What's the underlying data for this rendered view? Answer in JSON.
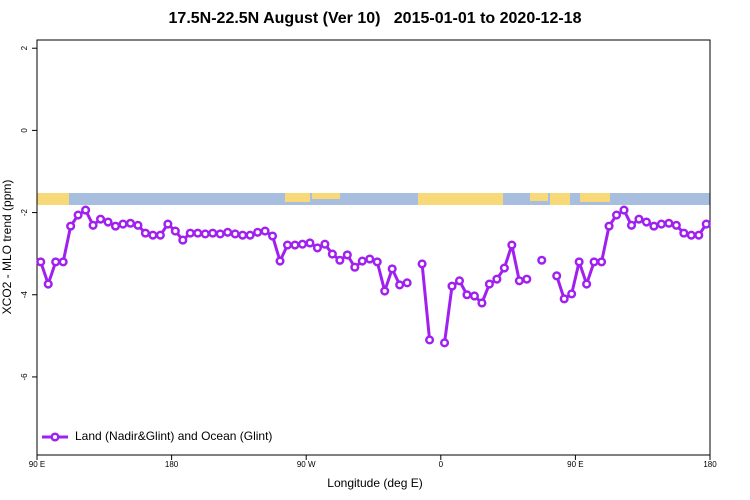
{
  "chart_data": {
    "type": "line",
    "title": "17.5N-22.5N August (Ver 10)   2015-01-01 to 2020-12-18",
    "x_label": "Longitude (deg E)",
    "y_label": "XCO2 - MLO trend (ppm)",
    "xlim": [
      90,
      540
    ],
    "xticks": [
      {
        "value": 90,
        "label": "90 E"
      },
      180,
      {
        "value": 270,
        "label": "90 W"
      },
      {
        "value": 360,
        "label": "0"
      },
      {
        "value": 450,
        "label": "90 E"
      },
      {
        "value": 540,
        "label": "180"
      }
    ],
    "ylim": [
      -7.9,
      2.2
    ],
    "yticks": [
      -6,
      -4,
      -2,
      0,
      2
    ],
    "legend": "bottom-left",
    "x": [
      92.5,
      97.5,
      102.5,
      107.5,
      112.5,
      117.5,
      122.5,
      127.5,
      132.5,
      137.5,
      142.5,
      147.5,
      152.5,
      157.5,
      162.5,
      167.5,
      172.5,
      177.5,
      182.5,
      187.5,
      192.5,
      197.5,
      202.5,
      207.5,
      212.5,
      217.5,
      222.5,
      227.5,
      232.5,
      237.5,
      242.5,
      247.5,
      252.5,
      257.5,
      262.5,
      267.5,
      272.5,
      277.5,
      282.5,
      287.5,
      292.5,
      297.5,
      302.5,
      307.5,
      312.5,
      317.5,
      322.5,
      327.5,
      332.5,
      337.5,
      342.5,
      347.5,
      352.5,
      357.5,
      362.5,
      367.5,
      372.5,
      377.5,
      382.5,
      387.5,
      392.5,
      397.5,
      402.5,
      407.5,
      412.5,
      417.5,
      422.5,
      427.5,
      432.5,
      437.5,
      442.5,
      447.5,
      452.5,
      457.5,
      462.5,
      467.5,
      472.5,
      477.5,
      482.5,
      487.5,
      492.5,
      497.5,
      502.5,
      507.5,
      512.5,
      517.5,
      522.5,
      527.5,
      532.5,
      537.5
    ],
    "series": [
      {
        "name": "Land (Nadir&Glint) and Ocean (Glint)",
        "color": "#a020f0",
        "values": [
          -3.2,
          -3.74,
          -3.2,
          -3.2,
          -2.33,
          -2.06,
          -1.94,
          -2.31,
          -2.16,
          -2.23,
          -2.33,
          -2.28,
          -2.26,
          -2.31,
          -2.5,
          -2.55,
          -2.55,
          -2.28,
          -2.45,
          -2.67,
          -2.5,
          -2.5,
          -2.52,
          -2.5,
          -2.52,
          -2.48,
          -2.52,
          -2.55,
          -2.55,
          -2.48,
          -2.45,
          -2.57,
          -3.18,
          -2.79,
          -2.79,
          -2.77,
          -2.74,
          -2.86,
          -2.77,
          -3.01,
          -3.16,
          -3.03,
          -3.33,
          -3.18,
          -3.13,
          -3.2,
          -3.91,
          -3.37,
          -3.76,
          -3.71,
          null,
          -3.25,
          -5.1,
          null,
          -5.17,
          -3.79,
          -3.66,
          -4.0,
          -4.03,
          -4.2,
          -3.74,
          -3.62,
          -3.35,
          -2.79,
          -3.66,
          -3.62,
          null,
          -3.16,
          null,
          -3.54,
          -4.1,
          -3.98,
          -3.2,
          -3.74,
          -3.2,
          -3.2,
          -2.33,
          -2.06,
          -1.94,
          -2.31,
          -2.16,
          -2.23,
          -2.33,
          -2.28,
          -2.26,
          -2.31,
          -2.5,
          -2.55,
          -2.55,
          -2.28
        ]
      }
    ]
  }
}
